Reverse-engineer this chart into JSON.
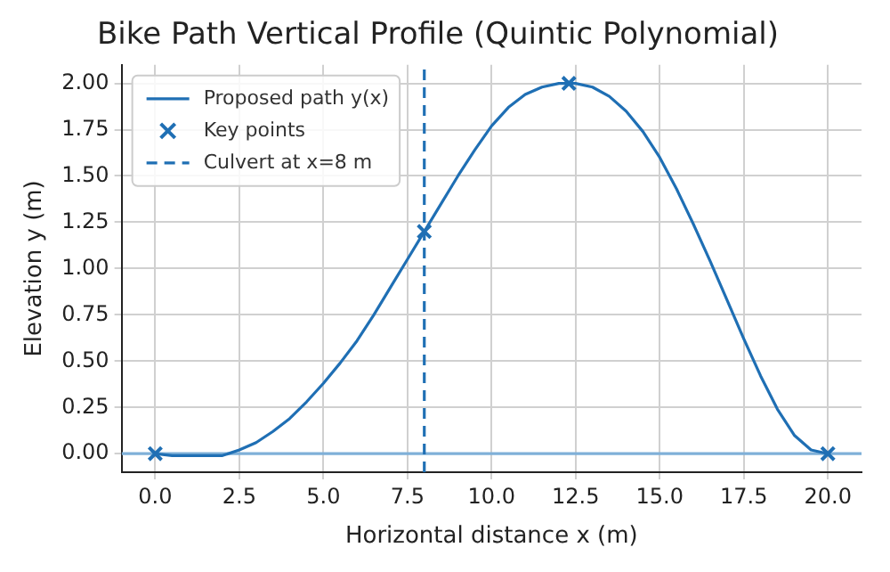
{
  "chart_data": {
    "type": "line",
    "title": "Bike Path Vertical Profile (Quintic Polynomial)",
    "xlabel": "Horizontal distance x (m)",
    "ylabel": "Elevation y (m)",
    "xlim": [
      -1,
      21
    ],
    "ylim": [
      -0.1,
      2.1
    ],
    "xticks": [
      {
        "value": 0,
        "label": "0.0"
      },
      {
        "value": 2.5,
        "label": "2.5"
      },
      {
        "value": 5,
        "label": "5.0"
      },
      {
        "value": 7.5,
        "label": "7.5"
      },
      {
        "value": 10,
        "label": "10.0"
      },
      {
        "value": 12.5,
        "label": "12.5"
      },
      {
        "value": 15,
        "label": "15.0"
      },
      {
        "value": 17.5,
        "label": "17.5"
      },
      {
        "value": 20,
        "label": "20.0"
      }
    ],
    "yticks": [
      {
        "value": 0,
        "label": "0.00"
      },
      {
        "value": 0.25,
        "label": "0.25"
      },
      {
        "value": 0.5,
        "label": "0.50"
      },
      {
        "value": 0.75,
        "label": "0.75"
      },
      {
        "value": 1,
        "label": "1.00"
      },
      {
        "value": 1.25,
        "label": "1.25"
      },
      {
        "value": 1.5,
        "label": "1.50"
      },
      {
        "value": 1.75,
        "label": "1.75"
      },
      {
        "value": 2,
        "label": "2.00"
      }
    ],
    "grid": true,
    "legend": "top left",
    "series": [
      {
        "name": "Proposed path y(x)",
        "type": "line",
        "color": "#1f6fb4",
        "marker": "none",
        "line_style": "solid",
        "x": [
          0,
          0.5,
          1,
          1.5,
          2,
          2.5,
          3,
          3.5,
          4,
          4.5,
          5,
          5.5,
          6,
          6.5,
          7,
          7.5,
          8,
          8.5,
          9,
          9.5,
          10,
          10.5,
          11,
          11.5,
          12,
          12.3,
          12.5,
          13,
          13.5,
          14,
          14.5,
          15,
          15.5,
          16,
          16.5,
          17,
          17.5,
          18,
          18.5,
          19,
          19.5,
          20
        ],
        "values": [
          0,
          -0.01,
          -0.01,
          -0.01,
          -0.01,
          0.02,
          0.06,
          0.12,
          0.19,
          0.28,
          0.38,
          0.49,
          0.61,
          0.75,
          0.9,
          1.05,
          1.2,
          1.35,
          1.5,
          1.64,
          1.77,
          1.87,
          1.94,
          1.98,
          2.0,
          2.0,
          2.0,
          1.98,
          1.93,
          1.85,
          1.74,
          1.6,
          1.43,
          1.24,
          1.04,
          0.83,
          0.62,
          0.42,
          0.24,
          0.1,
          0.02,
          0
        ]
      },
      {
        "name": "Key points",
        "type": "scatter",
        "color": "#1f6fb4",
        "marker": "cross",
        "x": [
          0,
          8,
          12.3,
          20
        ],
        "values": [
          0,
          1.2,
          2.0,
          0
        ]
      }
    ],
    "ref_lines": [
      {
        "axis": "x",
        "value": 8,
        "label": "Culvert at x=8 m",
        "color": "#1f6fb4",
        "line_style": "dashed"
      },
      {
        "axis": "y",
        "value": 0,
        "color": "#7fb0d8",
        "line_style": "solid"
      }
    ]
  }
}
